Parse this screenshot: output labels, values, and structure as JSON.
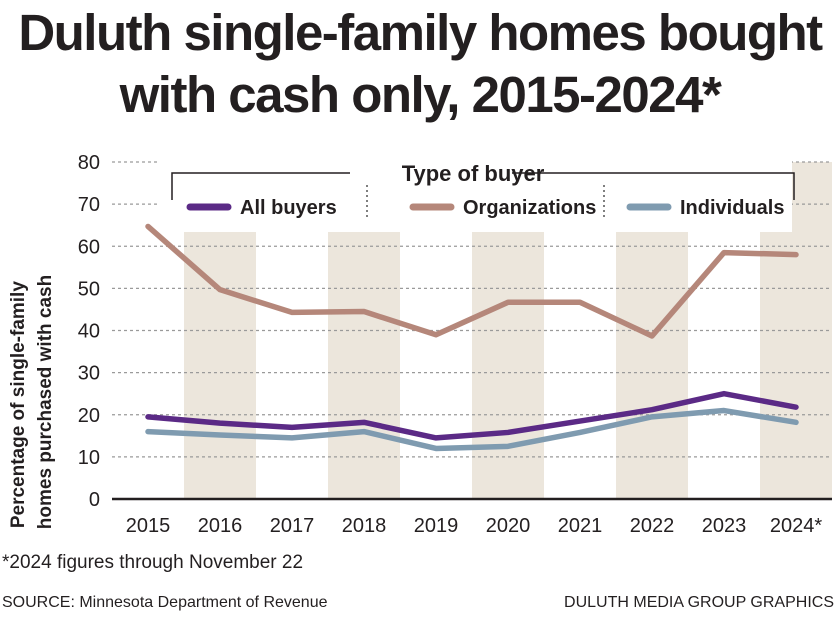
{
  "title_line1": "Duluth single-family homes bought",
  "title_line2": "with cash only, 2015-2024*",
  "footnote": "*2024 figures through November 22",
  "source": "SOURCE: Minnesota Department of Revenue",
  "credit": "DULUTH MEDIA GROUP GRAPHICS",
  "colors": {
    "all_buyers": "#5b2a86",
    "organizations": "#b5877a",
    "individuals": "#7f9bb0",
    "band": "#ece6dc",
    "grid": "#9a9a9a",
    "text": "#231f20"
  },
  "chart_data": {
    "type": "line",
    "title": "Duluth single-family homes bought with cash only, 2015-2024*",
    "xlabel": "",
    "ylabel": "Percentage of single-family homes purchased with cash",
    "ylabel_lines": [
      "Percentage of single-family",
      "homes purchased with cash"
    ],
    "x": [
      "2015",
      "2016",
      "2017",
      "2018",
      "2019",
      "2020",
      "2021",
      "2022",
      "2023",
      "2024*"
    ],
    "ylim": [
      0,
      80
    ],
    "yticks": [
      0,
      10,
      20,
      30,
      40,
      50,
      60,
      70,
      80
    ],
    "grid": true,
    "legend_title": "Type of buyer",
    "legend_position": "top",
    "series": [
      {
        "name": "All buyers",
        "values": [
          19.5,
          18,
          17,
          18.2,
          14.5,
          15.8,
          18.5,
          21.2,
          25,
          21.8
        ]
      },
      {
        "name": "Organizations",
        "values": [
          64.7,
          49.7,
          44.3,
          44.5,
          39,
          46.7,
          46.7,
          38.7,
          58.5,
          58
        ]
      },
      {
        "name": "Individuals",
        "values": [
          16,
          15.2,
          14.5,
          16,
          12,
          12.5,
          15.8,
          19.5,
          21,
          18.2
        ]
      }
    ]
  }
}
